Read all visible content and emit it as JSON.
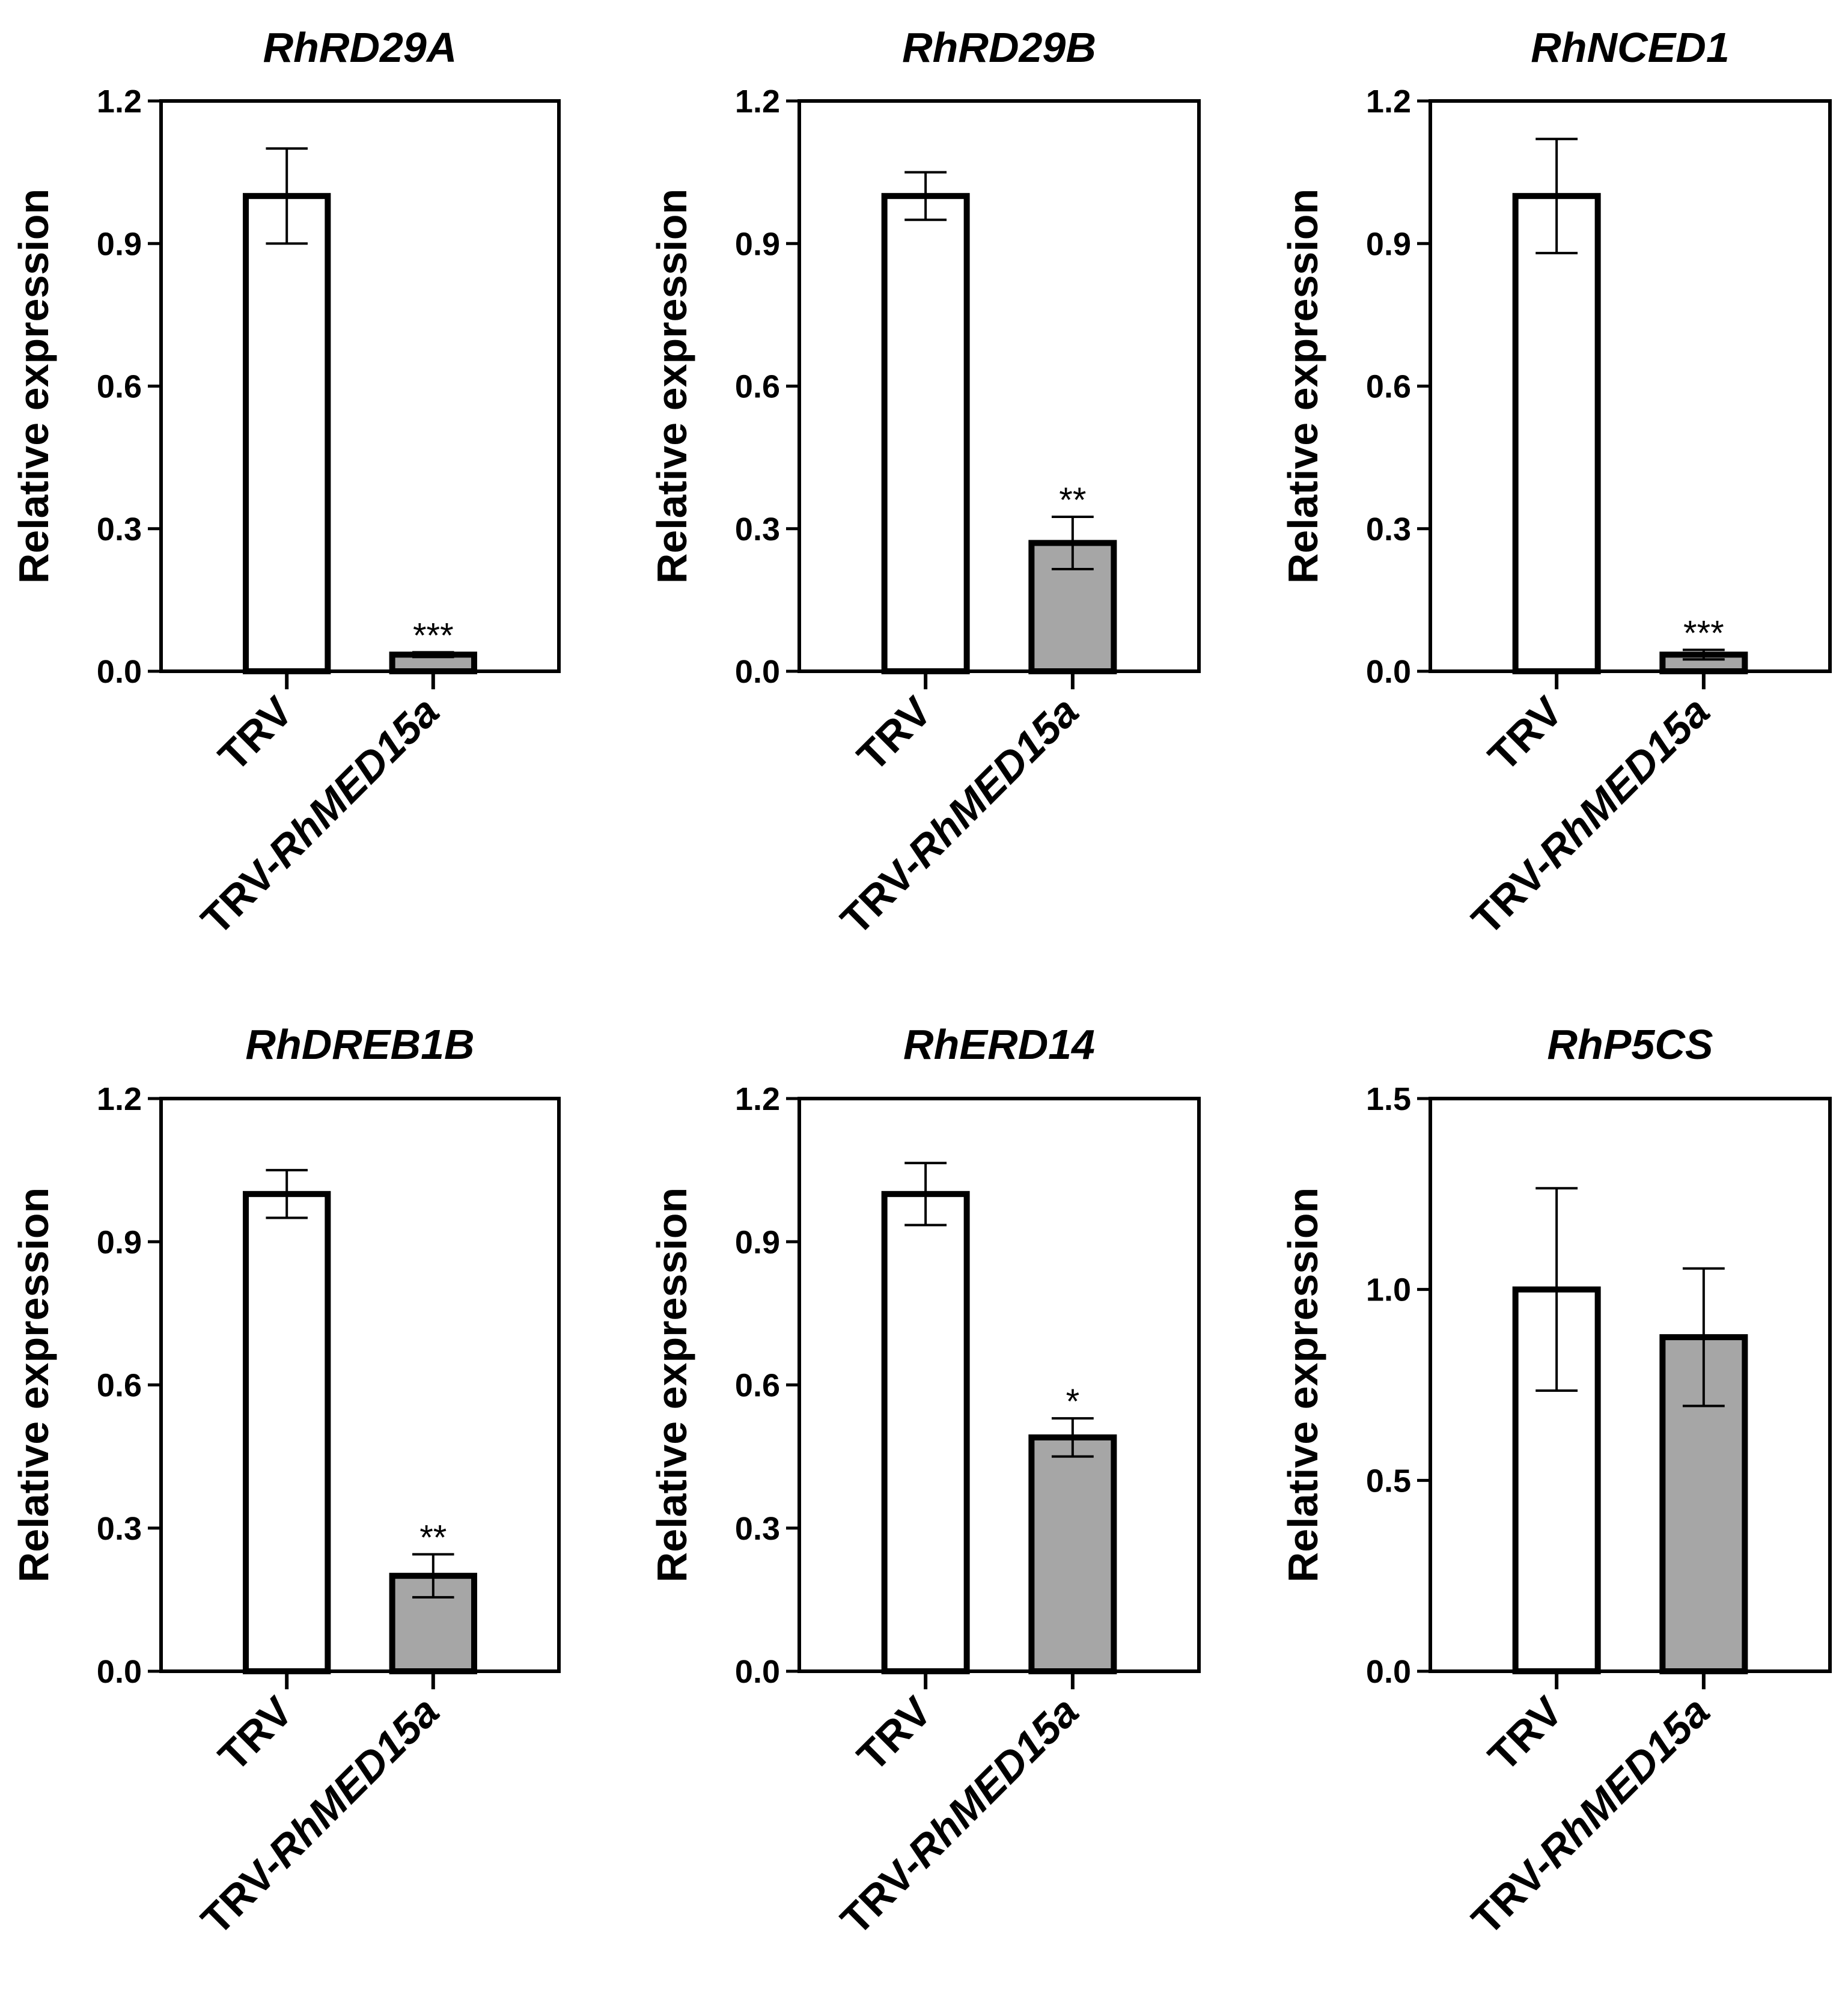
{
  "figure": {
    "ylabel": "Relative expression",
    "categories": [
      "TRV",
      "TRV-RhMED15a"
    ],
    "category_parts": [
      {
        "plain": "TRV",
        "italic": ""
      },
      {
        "plain": "TRV-",
        "italic": "RhMED15a"
      }
    ],
    "colors": {
      "control_fill": "#ffffff",
      "treatment_fill": "#a6a6a6",
      "stroke": "#000000"
    }
  },
  "chart_data": [
    {
      "type": "bar",
      "title": "RhRD29A",
      "xlabel": "",
      "ylabel": "Relative expression",
      "categories": [
        "TRV",
        "TRV-RhMED15a"
      ],
      "values": [
        1.0,
        0.035
      ],
      "errors": [
        0.1,
        0.005
      ],
      "significance": [
        "",
        "***"
      ],
      "ylim": [
        0,
        1.2
      ],
      "yticks": [
        "0.0",
        "0.3",
        "0.6",
        "0.9",
        "1.2"
      ],
      "ytick_values": [
        0,
        0.3,
        0.6,
        0.9,
        1.2
      ]
    },
    {
      "type": "bar",
      "title": "RhRD29B",
      "xlabel": "",
      "ylabel": "Relative expression",
      "categories": [
        "TRV",
        "TRV-RhMED15a"
      ],
      "values": [
        1.0,
        0.27
      ],
      "errors": [
        0.05,
        0.055
      ],
      "significance": [
        "",
        "**"
      ],
      "ylim": [
        0,
        1.2
      ],
      "yticks": [
        "0.0",
        "0.3",
        "0.6",
        "0.9",
        "1.2"
      ],
      "ytick_values": [
        0,
        0.3,
        0.6,
        0.9,
        1.2
      ]
    },
    {
      "type": "bar",
      "title": "RhNCED1",
      "xlabel": "",
      "ylabel": "Relative expression",
      "categories": [
        "TRV",
        "TRV-RhMED15a"
      ],
      "values": [
        1.0,
        0.035
      ],
      "errors": [
        0.12,
        0.01
      ],
      "significance": [
        "",
        "***"
      ],
      "ylim": [
        0,
        1.2
      ],
      "yticks": [
        "0.0",
        "0.3",
        "0.6",
        "0.9",
        "1.2"
      ],
      "ytick_values": [
        0,
        0.3,
        0.6,
        0.9,
        1.2
      ]
    },
    {
      "type": "bar",
      "title": "RhDREB1B",
      "xlabel": "",
      "ylabel": "Relative expression",
      "categories": [
        "TRV",
        "TRV-RhMED15a"
      ],
      "values": [
        1.0,
        0.2
      ],
      "errors": [
        0.05,
        0.045
      ],
      "significance": [
        "",
        "**"
      ],
      "ylim": [
        0,
        1.2
      ],
      "yticks": [
        "0.0",
        "0.3",
        "0.6",
        "0.9",
        "1.2"
      ],
      "ytick_values": [
        0,
        0.3,
        0.6,
        0.9,
        1.2
      ]
    },
    {
      "type": "bar",
      "title": "RhERD14",
      "xlabel": "",
      "ylabel": "Relative expression",
      "categories": [
        "TRV",
        "TRV-RhMED15a"
      ],
      "values": [
        1.0,
        0.49
      ],
      "errors": [
        0.065,
        0.04
      ],
      "significance": [
        "",
        "*"
      ],
      "ylim": [
        0,
        1.2
      ],
      "yticks": [
        "0.0",
        "0.3",
        "0.6",
        "0.9",
        "1.2"
      ],
      "ytick_values": [
        0,
        0.3,
        0.6,
        0.9,
        1.2
      ]
    },
    {
      "type": "bar",
      "title": "RhP5CS",
      "xlabel": "",
      "ylabel": "Relative expression",
      "categories": [
        "TRV",
        "TRV-RhMED15a"
      ],
      "values": [
        1.0,
        0.875
      ],
      "errors": [
        0.265,
        0.18
      ],
      "significance": [
        "",
        ""
      ],
      "ylim": [
        0,
        1.5
      ],
      "yticks": [
        "0.0",
        "0.5",
        "1.0",
        "1.5"
      ],
      "ytick_values": [
        0,
        0.5,
        1.0,
        1.5
      ]
    }
  ]
}
